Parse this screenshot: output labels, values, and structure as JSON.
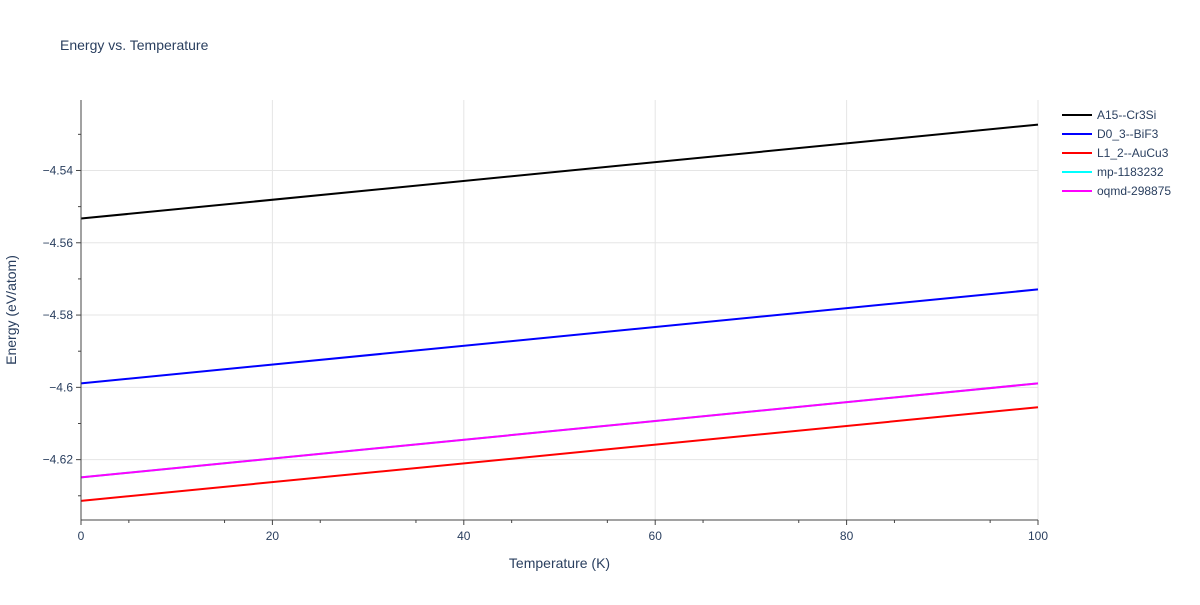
{
  "chart_data": {
    "type": "line",
    "title": "Energy vs. Temperature",
    "xlabel": "Temperature (K)",
    "ylabel": "Energy (eV/atom)",
    "xlim": [
      0,
      100
    ],
    "ylim": [
      -4.6367,
      -4.5205
    ],
    "x_ticks": [
      0,
      20,
      40,
      60,
      80,
      100
    ],
    "x_tick_labels": [
      "0",
      "20",
      "40",
      "60",
      "80",
      "100"
    ],
    "y_ticks": [
      -4.62,
      -4.6,
      -4.58,
      -4.56,
      -4.54
    ],
    "y_tick_labels": [
      "−4.62",
      "−4.6",
      "−4.58",
      "−4.56",
      "−4.54"
    ],
    "grid": true,
    "legend_position": "top-right",
    "series": [
      {
        "name": "A15--Cr3Si",
        "color": "#000000",
        "x": [
          0,
          100
        ],
        "y": [
          -4.5533,
          -4.5273
        ]
      },
      {
        "name": "D0_3--BiF3",
        "color": "#0000ff",
        "x": [
          0,
          100
        ],
        "y": [
          -4.5989,
          -4.5729
        ]
      },
      {
        "name": "L1_2--AuCu3",
        "color": "#ff0000",
        "x": [
          0,
          100
        ],
        "y": [
          -4.6314,
          -4.6055
        ]
      },
      {
        "name": "mp-1183232",
        "color": "#00ffff",
        "x": [
          0,
          100
        ],
        "y": [
          -4.6249,
          -4.5989
        ]
      },
      {
        "name": "oqmd-298875",
        "color": "#ff00ff",
        "x": [
          0,
          100
        ],
        "y": [
          -4.6249,
          -4.5989
        ]
      }
    ]
  }
}
